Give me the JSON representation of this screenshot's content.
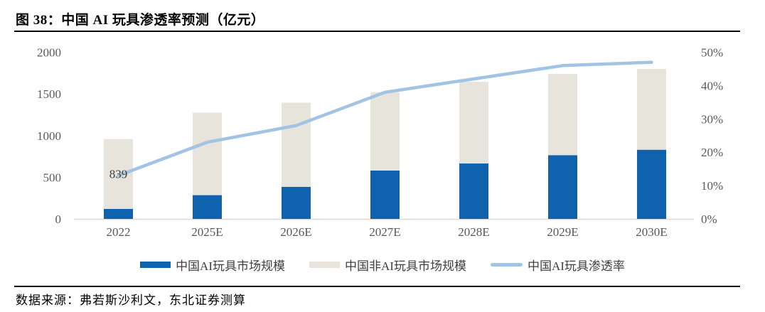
{
  "title": "图 38：中国 AI 玩具渗透率预测（亿元）",
  "source": "数据来源：弗若斯沙利文，东北证券测算",
  "colors": {
    "ai_bar": "#0e62ae",
    "non_ai_bar": "#e7e4db",
    "penetration_line": "#a2c4e4",
    "axis_text": "#595959",
    "axis_line": "#d9d9d9",
    "data_label_text": "#404040",
    "legend_text": "#3f3f3f",
    "rule": "#000000"
  },
  "chart_data": {
    "type": "bar",
    "subtype": "stacked-bar-with-line-overlay",
    "grid": false,
    "legend_position": "bottom",
    "categories": [
      "2022",
      "2025E",
      "2026E",
      "2027E",
      "2028E",
      "2029E",
      "2030E"
    ],
    "series": [
      {
        "name": "中国AI玩具市场规模",
        "type": "bar",
        "axis": "left",
        "values": [
          120,
          285,
          385,
          580,
          665,
          765,
          830
        ]
      },
      {
        "name": "中国非AI玩具市场规模",
        "type": "bar",
        "axis": "left",
        "values": [
          839,
          990,
          1010,
          940,
          980,
          975,
          970
        ]
      },
      {
        "name": "中国AI玩具渗透率",
        "type": "line",
        "axis": "right",
        "unit": "%",
        "values": [
          13,
          23,
          28,
          38,
          42,
          46,
          47
        ]
      }
    ],
    "data_labels": [
      {
        "series": "中国非AI玩具市场规模",
        "category": "2022",
        "text": "839"
      }
    ],
    "left_axis": {
      "min": 0,
      "max": 2000,
      "step": 500,
      "ticks": [
        "0",
        "500",
        "1000",
        "1500",
        "2000"
      ]
    },
    "right_axis": {
      "min": 0,
      "max": 50,
      "step": 10,
      "ticks": [
        "0%",
        "10%",
        "20%",
        "30%",
        "40%",
        "50%"
      ]
    }
  }
}
